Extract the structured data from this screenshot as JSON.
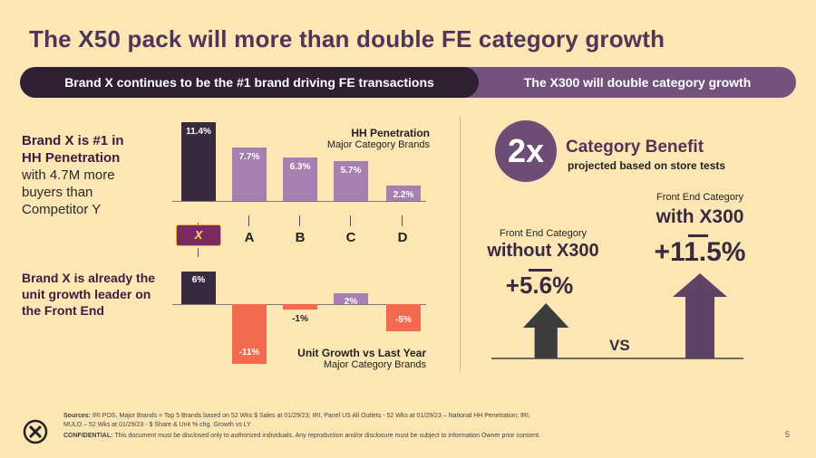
{
  "title": "The X50 pack will more than double FE category growth",
  "banner": {
    "left": "Brand X continues to be the #1 brand driving FE transactions",
    "right": "The X300 will double category growth"
  },
  "left_text": {
    "penetration_bold": "Brand X is #1 in HH Penetration",
    "penetration_rest": "with 4.7M more buyers than Competitor Y",
    "unit_growth_bold": "Brand X is already the unit growth leader on the Front End"
  },
  "hh_chart": {
    "title": "HH Penetration",
    "subtitle": "Major Category Brands"
  },
  "unit_chart": {
    "title": "Unit Growth vs Last Year",
    "subtitle": "Major Category Brands"
  },
  "chart_data": [
    {
      "type": "bar",
      "title": "HH Penetration",
      "subtitle": "Major Category Brands",
      "categories": [
        "Brand X",
        "A",
        "B",
        "C",
        "D"
      ],
      "values": [
        11.4,
        7.7,
        6.3,
        5.7,
        2.2
      ],
      "labels": [
        "11.4%",
        "7.7%",
        "6.3%",
        "5.7%",
        "2.2%"
      ],
      "unit": "%"
    },
    {
      "type": "bar",
      "title": "Unit Growth vs Last Year",
      "subtitle": "Major Category Brands",
      "categories": [
        "Brand X",
        "A",
        "B",
        "C",
        "D"
      ],
      "values": [
        6,
        -11,
        -1,
        2,
        -5
      ],
      "labels": [
        "6%",
        "-11%",
        "-1%",
        "2%",
        "-5%"
      ],
      "unit": "%"
    }
  ],
  "categories_display": [
    "A",
    "B",
    "C",
    "D"
  ],
  "product_label": "X",
  "right": {
    "multiplier": "2x",
    "benefit_title": "Category Benefit",
    "benefit_sub": "projected based on store tests",
    "without_label": "Front End Category",
    "without_title": "without X300",
    "without_value": "+5.6%",
    "with_label": "Front End Category",
    "with_title": "with X300",
    "with_value": "+11.5%",
    "vs": "VS"
  },
  "footer": {
    "sources_label": "Sources:",
    "sources": "IRI POS, Major Brands = Top 5 Brands based  on 52 Wks $ Sales at 01/29/23; IRI, Panel US All Outlets - 52 Wks at 01/29/23 – National HH Penetration; IRI, MULO – 52 Wks at 01/29/23 - $ Share & Unit % chg. Growth vs LY",
    "confidential_label": "CONFIDENTIAL:",
    "confidential": "This document must be disclosed only to authorized individuals. Any reproduction and/or disclosure must be subject to information Owner prior consent.",
    "page": "5"
  },
  "colors": {
    "background": "#fce6b3",
    "dark_purple": "#3a2a40",
    "light_purple": "#a580b0",
    "negative": "#f36a4e",
    "arrow_dark": "#3c3c3c",
    "arrow_purple": "#5e4366"
  }
}
